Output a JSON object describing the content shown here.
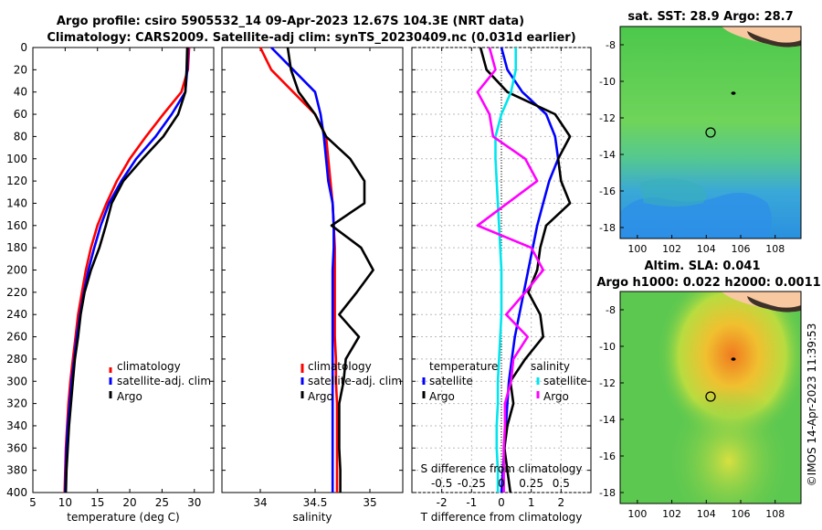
{
  "header": {
    "line1": "Argo profile: csiro 5905532_14 09-Apr-2023 12.67S 104.3E (NRT data)",
    "line2": "Climatology: CARS2009. Satellite-adj clim: synTS_20230409.nc (0.031d earlier)"
  },
  "footer_vertical": "©IMOS 14-Apr-2023 11:39:53",
  "colors": {
    "climatology": "#ff0000",
    "satellite": "#0000ff",
    "argo": "#000000",
    "sal_sat": "#00e5ee",
    "sal_argo": "#ff00ff"
  },
  "chart_data": [
    {
      "id": "temperature",
      "type": "line",
      "xlabel": "temperature (deg C)",
      "ylabel": "",
      "xlim": [
        5,
        33
      ],
      "ylim": [
        400,
        0
      ],
      "xticks": [
        5,
        10,
        15,
        20,
        25,
        30
      ],
      "yticks": [
        0,
        20,
        40,
        60,
        80,
        100,
        120,
        140,
        160,
        180,
        200,
        220,
        240,
        260,
        280,
        300,
        320,
        340,
        360,
        380,
        400
      ],
      "legend": [
        "climatology",
        "satellite-adj. clim",
        "Argo"
      ],
      "series": [
        {
          "name": "climatology",
          "depth": [
            0,
            20,
            40,
            60,
            80,
            100,
            120,
            140,
            160,
            180,
            200,
            220,
            240,
            260,
            280,
            300,
            320,
            340,
            360,
            380,
            400
          ],
          "values": [
            29.2,
            29.0,
            28.0,
            25.2,
            22.5,
            20.0,
            18.0,
            16.4,
            15.0,
            14.0,
            13.2,
            12.6,
            12.0,
            11.6,
            11.2,
            10.8,
            10.5,
            10.3,
            10.1,
            10.0,
            9.9
          ]
        },
        {
          "name": "satellite-adj. clim",
          "depth": [
            0,
            20,
            40,
            60,
            80,
            100,
            120,
            140,
            160,
            180,
            200,
            220,
            240,
            260,
            280,
            300,
            320,
            340,
            360,
            380,
            400
          ],
          "values": [
            29.0,
            28.9,
            28.6,
            26.5,
            24.0,
            21.0,
            18.7,
            16.8,
            15.5,
            14.5,
            13.6,
            12.9,
            12.3,
            11.8,
            11.4,
            11.0,
            10.7,
            10.4,
            10.2,
            10.1,
            10.0
          ]
        },
        {
          "name": "Argo",
          "depth": [
            0,
            20,
            40,
            60,
            80,
            100,
            120,
            140,
            160,
            180,
            200,
            220,
            240,
            260,
            280,
            300,
            320,
            340,
            360,
            380,
            400
          ],
          "values": [
            28.9,
            28.8,
            28.6,
            27.5,
            25.2,
            22.0,
            19.0,
            17.2,
            16.3,
            15.3,
            14.0,
            13.0,
            12.4,
            12.0,
            11.5,
            11.2,
            10.9,
            10.6,
            10.4,
            10.2,
            10.1
          ]
        }
      ]
    },
    {
      "id": "salinity",
      "type": "line",
      "xlabel": "salinity",
      "xlim": [
        33.65,
        35.3
      ],
      "ylim": [
        400,
        0
      ],
      "xticks": [
        34,
        34.5,
        35
      ],
      "legend": [
        "climatology",
        "satellite-adj. clim",
        "Argo"
      ],
      "series": [
        {
          "name": "climatology",
          "depth": [
            0,
            20,
            40,
            60,
            80,
            100,
            120,
            140,
            160,
            180,
            200,
            220,
            240,
            260,
            280,
            300,
            320,
            340,
            360,
            380,
            400
          ],
          "values": [
            34.0,
            34.1,
            34.3,
            34.5,
            34.6,
            34.62,
            34.64,
            34.66,
            34.67,
            34.68,
            34.68,
            34.68,
            34.68,
            34.68,
            34.69,
            34.69,
            34.7,
            34.7,
            34.7,
            34.7,
            34.7
          ]
        },
        {
          "name": "satellite-adj. clim",
          "depth": [
            0,
            20,
            40,
            60,
            80,
            100,
            120,
            140,
            160,
            180,
            200,
            220,
            240,
            260,
            280,
            300,
            320,
            340,
            360,
            380,
            400
          ],
          "values": [
            34.1,
            34.3,
            34.5,
            34.55,
            34.58,
            34.6,
            34.62,
            34.66,
            34.67,
            34.67,
            34.66,
            34.66,
            34.66,
            34.66,
            34.66,
            34.66,
            34.66,
            34.66,
            34.66,
            34.66,
            34.66
          ]
        },
        {
          "name": "Argo",
          "depth": [
            0,
            20,
            40,
            60,
            80,
            100,
            120,
            140,
            160,
            180,
            200,
            220,
            240,
            260,
            280,
            300,
            320,
            340,
            360,
            380,
            400
          ],
          "values": [
            34.25,
            34.28,
            34.35,
            34.5,
            34.6,
            34.82,
            34.95,
            34.95,
            34.65,
            34.92,
            35.03,
            34.88,
            34.72,
            34.9,
            34.78,
            34.76,
            34.72,
            34.72,
            34.72,
            34.73,
            34.73
          ]
        }
      ]
    },
    {
      "id": "difference",
      "type": "line",
      "xlabel": "T difference from climatology",
      "top_xlabel": "S difference from climatology",
      "xlim": [
        -3,
        3
      ],
      "ylim": [
        400,
        0
      ],
      "xticks": [
        -2,
        -1,
        0,
        1,
        2
      ],
      "top_xticks": [
        "-0.5",
        "-0.25",
        "0",
        "0.25",
        "0.5"
      ],
      "legend_left_title": "temperature",
      "legend_right_title": "salinity",
      "legend": [
        "satellite",
        "Argo",
        "satellite",
        "Argo"
      ],
      "series": [
        {
          "name": "T satellite",
          "depth": [
            0,
            20,
            40,
            60,
            80,
            100,
            120,
            140,
            160,
            180,
            200,
            220,
            240,
            260,
            280,
            300,
            320,
            340,
            360,
            380,
            400
          ],
          "values": [
            0.0,
            0.2,
            0.7,
            1.5,
            1.8,
            1.9,
            1.6,
            1.4,
            1.2,
            1.05,
            0.9,
            0.75,
            0.6,
            0.45,
            0.35,
            0.25,
            0.2,
            0.15,
            0.1,
            0.05,
            0.0
          ]
        },
        {
          "name": "T Argo",
          "depth": [
            0,
            20,
            40,
            60,
            80,
            100,
            120,
            140,
            160,
            180,
            200,
            220,
            240,
            260,
            280,
            300,
            320,
            340,
            360,
            380,
            400
          ],
          "values": [
            -0.7,
            -0.5,
            0.2,
            1.8,
            2.3,
            1.9,
            2.0,
            2.3,
            1.5,
            1.3,
            1.2,
            0.9,
            1.3,
            1.4,
            0.8,
            0.3,
            0.4,
            0.2,
            0.1,
            0.2,
            0.3
          ]
        },
        {
          "name": "S satellite",
          "depth": [
            0,
            20,
            40,
            60,
            80,
            100,
            120,
            140,
            160,
            180,
            200,
            220,
            240,
            260,
            280,
            300,
            320,
            340,
            360,
            380,
            400
          ],
          "values": [
            0.12,
            0.12,
            0.08,
            0.0,
            -0.05,
            -0.05,
            -0.04,
            -0.03,
            -0.02,
            -0.01,
            0.0,
            0.0,
            0.0,
            -0.01,
            -0.02,
            -0.03,
            -0.03,
            -0.04,
            -0.04,
            -0.03,
            -0.03
          ]
        },
        {
          "name": "S Argo",
          "depth": [
            0,
            20,
            40,
            60,
            80,
            100,
            120,
            140,
            160,
            180,
            200,
            220,
            240,
            260,
            280,
            300,
            320,
            340,
            360,
            380,
            400
          ],
          "values": [
            -0.1,
            -0.05,
            -0.2,
            -0.1,
            -0.07,
            0.2,
            0.3,
            0.05,
            -0.2,
            0.25,
            0.35,
            0.2,
            0.04,
            0.22,
            0.1,
            0.08,
            0.03,
            0.03,
            0.02,
            0.02,
            0.02
          ]
        }
      ]
    },
    {
      "id": "sst_map",
      "type": "heatmap",
      "title": "sat. SST: 28.9 Argo: 28.7",
      "xticks": [
        "100",
        "102",
        "104",
        "106",
        "108"
      ],
      "yticks": [
        "-8",
        "-10",
        "-12",
        "-14",
        "-16",
        "-18"
      ],
      "argo_position": {
        "lon": 104.3,
        "lat": -12.67
      }
    },
    {
      "id": "sla_map",
      "type": "heatmap",
      "title": "Altim. SLA: 0.041",
      "subtitle": "Argo h1000: 0.022 h2000: 0.0011",
      "xticks": [
        "100",
        "102",
        "104",
        "106",
        "108"
      ],
      "yticks": [
        "-8",
        "-10",
        "-12",
        "-14",
        "-16",
        "-18"
      ],
      "argo_position": {
        "lon": 104.3,
        "lat": -12.67
      }
    }
  ]
}
